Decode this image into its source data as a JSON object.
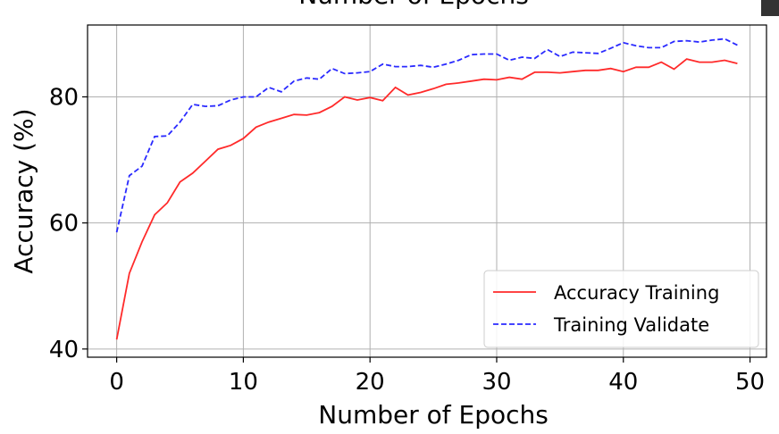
{
  "chart_data": {
    "type": "line",
    "title": "Number of Epochs",
    "xlabel": "Number of Epochs",
    "ylabel": "Accuracy (%)",
    "xlim": [
      -2.3,
      51.3
    ],
    "ylim": [
      38.7,
      91.4
    ],
    "xticks": [
      0,
      10,
      20,
      30,
      40,
      50
    ],
    "yticks": [
      40,
      60,
      80
    ],
    "grid": true,
    "legend_position": "lower-right",
    "series": [
      {
        "name": "Accuracy Training",
        "color": "#ff2a2a",
        "style": "solid",
        "x": [
          0,
          1,
          2,
          3,
          4,
          5,
          6,
          7,
          8,
          9,
          10,
          11,
          12,
          13,
          14,
          15,
          16,
          17,
          18,
          19,
          20,
          21,
          22,
          23,
          24,
          25,
          26,
          27,
          28,
          29,
          30,
          31,
          32,
          33,
          34,
          35,
          36,
          37,
          38,
          39,
          40,
          41,
          42,
          43,
          44,
          45,
          46,
          47,
          48,
          49
        ],
        "values": [
          41.5,
          52,
          57,
          61.3,
          63.2,
          66.5,
          67.9,
          69.8,
          71.7,
          72.3,
          73.4,
          75.2,
          76,
          76.6,
          77.2,
          77.1,
          77.5,
          78.5,
          80,
          79.5,
          79.9,
          79.4,
          81.5,
          80.3,
          80.7,
          81.3,
          82,
          82.2,
          82.5,
          82.8,
          82.7,
          83.1,
          82.8,
          83.9,
          83.9,
          83.8,
          84,
          84.2,
          84.2,
          84.5,
          84,
          84.7,
          84.7,
          85.5,
          84.4,
          86,
          85.5,
          85.5,
          85.8,
          85.3
        ]
      },
      {
        "name": "Training Validate",
        "color": "#2a2aff",
        "style": "dashed",
        "x": [
          0,
          1,
          2,
          3,
          4,
          5,
          6,
          7,
          8,
          9,
          10,
          11,
          12,
          13,
          14,
          15,
          16,
          17,
          18,
          19,
          20,
          21,
          22,
          23,
          24,
          25,
          26,
          27,
          28,
          29,
          30,
          31,
          32,
          33,
          34,
          35,
          36,
          37,
          38,
          39,
          40,
          41,
          42,
          43,
          44,
          45,
          46,
          47,
          48,
          49
        ],
        "values": [
          58.5,
          67.5,
          69,
          73.7,
          73.8,
          76,
          78.8,
          78.5,
          78.6,
          79.5,
          80,
          80,
          81.5,
          80.8,
          82.5,
          83,
          82.8,
          84.5,
          83.7,
          83.8,
          84,
          85.2,
          84.8,
          84.8,
          85,
          84.7,
          85.2,
          85.8,
          86.7,
          86.8,
          86.8,
          85.8,
          86.3,
          86.1,
          87.5,
          86.4,
          87.1,
          87,
          86.9,
          87.7,
          88.6,
          88.1,
          87.8,
          87.8,
          88.8,
          88.9,
          88.7,
          89,
          89.2,
          88.2
        ]
      }
    ]
  }
}
